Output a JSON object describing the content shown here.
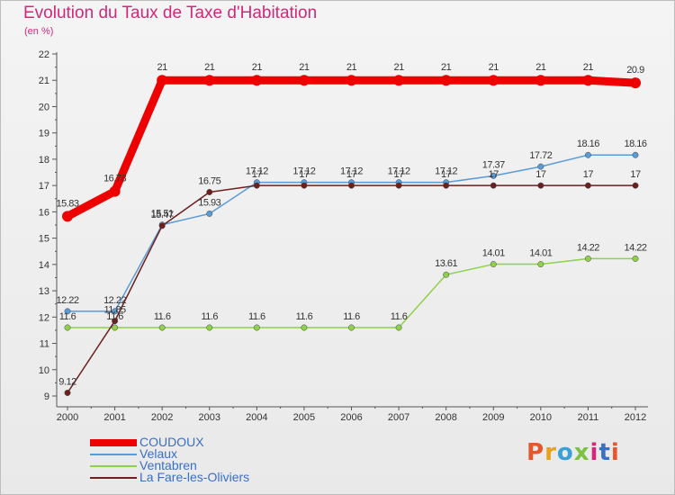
{
  "chart_data": {
    "type": "line",
    "title": "Evolution du Taux de Taxe d'Habitation",
    "subtitle": "(en %)",
    "x": [
      "2000",
      "2001",
      "2002",
      "2003",
      "2004",
      "2005",
      "2006",
      "2007",
      "2008",
      "2009",
      "2010",
      "2011",
      "2012"
    ],
    "ylim": [
      9,
      22
    ],
    "yticks": [
      9,
      10,
      11,
      12,
      13,
      14,
      15,
      16,
      17,
      18,
      19,
      20,
      21,
      22
    ],
    "grid": false,
    "legend_position": "bottom-left",
    "series": [
      {
        "name": "COUDOUX",
        "color": "#ee0000",
        "values": [
          15.83,
          16.78,
          21,
          21,
          21,
          21,
          21,
          21,
          21,
          21,
          21,
          21,
          20.9
        ],
        "labels": [
          "15.83",
          "16.78",
          "21",
          "21",
          "21",
          "21",
          "21",
          "21",
          "21",
          "21",
          "21",
          "21",
          "20.9"
        ]
      },
      {
        "name": "Velaux",
        "color": "#5b9bd5",
        "values": [
          12.22,
          12.22,
          15.51,
          15.93,
          17.12,
          17.12,
          17.12,
          17.12,
          17.12,
          17.37,
          17.72,
          18.16,
          18.16
        ],
        "labels": [
          "12.22",
          "12.22",
          "15.51",
          "15.93",
          "17.12",
          "17.12",
          "17.12",
          "17.12",
          "17.12",
          "17.37",
          "17.72",
          "18.16",
          "18.16"
        ]
      },
      {
        "name": "Ventabren",
        "color": "#8ed14a",
        "values": [
          11.6,
          11.6,
          11.6,
          11.6,
          11.6,
          11.6,
          11.6,
          11.6,
          13.61,
          14.01,
          14.01,
          14.22,
          14.22
        ],
        "labels": [
          "11.6",
          "11.6",
          "11.6",
          "11.6",
          "11.6",
          "11.6",
          "11.6",
          "11.6",
          "13.61",
          "14.01",
          "14.01",
          "14.22",
          "14.22"
        ]
      },
      {
        "name": "La Fare-les-Oliviers",
        "color": "#6b1f1f",
        "values": [
          9.12,
          11.85,
          15.47,
          16.75,
          17,
          17,
          17,
          17,
          17,
          17,
          17,
          17,
          17
        ],
        "labels": [
          "9.12",
          "11.85",
          "15.47",
          "16.75",
          "17",
          "17",
          "17",
          "17",
          "17",
          "17",
          "17",
          "17",
          "17"
        ]
      }
    ]
  },
  "legend": {
    "items": [
      "COUDOUX",
      "Velaux",
      "Ventabren",
      "La Fare-les-Oliviers"
    ]
  },
  "logo": {
    "text": "Proxiti",
    "colors": [
      "#e8552a",
      "#e8a11f",
      "#3aa0d8",
      "#7cc242",
      "#d1287a",
      "#3a6fc4",
      "#e8552a"
    ]
  }
}
